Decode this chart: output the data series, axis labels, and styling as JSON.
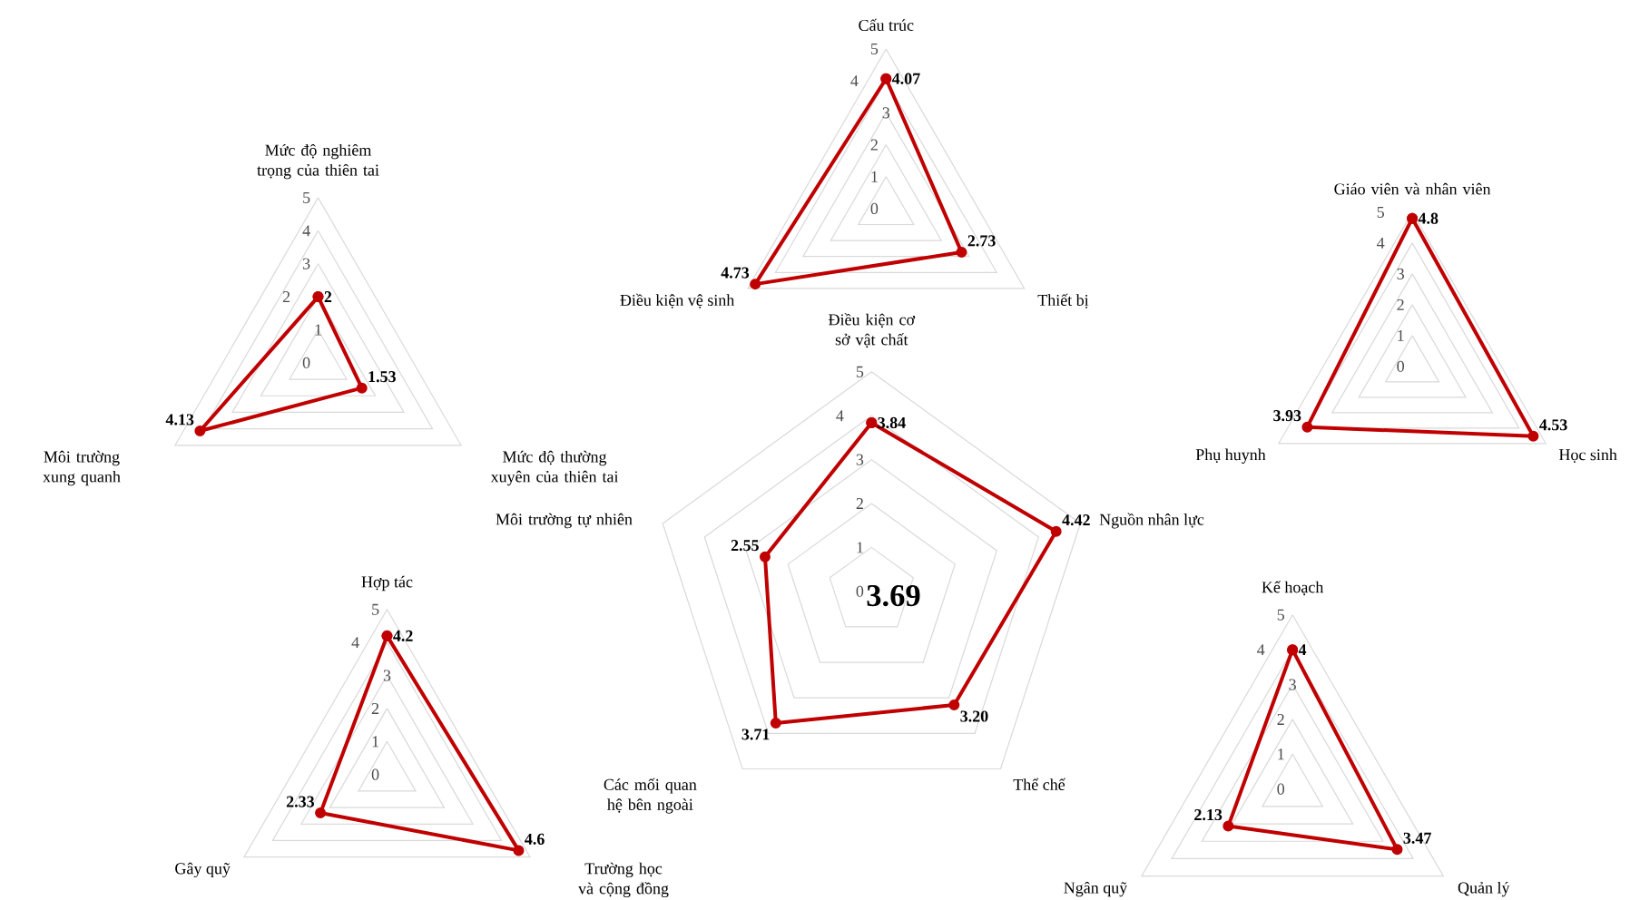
{
  "chart_data": [
    {
      "type": "radar",
      "categories": [
        "Cấu trúc",
        "Thiết bị",
        "Điều kiện vệ sinh"
      ],
      "values": [
        4.07,
        2.73,
        4.73
      ],
      "value_labels": [
        "4.07",
        "2.73",
        "4.73"
      ],
      "color": "#c00000",
      "ylim": [
        0,
        5
      ],
      "yticks": [
        0,
        1,
        2,
        3,
        4,
        5
      ],
      "grid": true,
      "marker": "circle"
    },
    {
      "type": "radar",
      "categories": [
        "Mức độ nghiêm trọng của thiên tai",
        "Mức độ thường xuyên của thiên tai",
        "Môi trường xung quanh"
      ],
      "values": [
        2,
        1.53,
        4.13
      ],
      "value_labels": [
        "2",
        "1.53",
        "4.13"
      ],
      "color": "#c00000",
      "ylim": [
        0,
        5
      ],
      "yticks": [
        0,
        1,
        2,
        3,
        4,
        5
      ],
      "grid": true,
      "marker": "circle"
    },
    {
      "type": "radar",
      "categories": [
        "Giáo viên và nhân viên",
        "Học sinh",
        "Phụ huynh"
      ],
      "values": [
        4.8,
        4.53,
        3.93
      ],
      "value_labels": [
        "4.8",
        "4.53",
        "3.93"
      ],
      "color": "#c00000",
      "ylim": [
        0,
        5
      ],
      "yticks": [
        0,
        1,
        2,
        3,
        4,
        5
      ],
      "grid": true,
      "marker": "circle"
    },
    {
      "type": "radar",
      "categories": [
        "Điều kiện cơ sở vật chất",
        "Nguồn nhân lực",
        "Thể chế",
        "Các mối quan hệ bên ngoài",
        "Môi trường tự nhiên"
      ],
      "values": [
        3.84,
        4.42,
        3.2,
        3.71,
        2.55
      ],
      "value_labels": [
        "3.84",
        "4.42",
        "3.20",
        "3.71",
        "2.55"
      ],
      "color": "#c00000",
      "ylim": [
        0,
        5
      ],
      "yticks": [
        0,
        1,
        2,
        3,
        4,
        5
      ],
      "grid": true,
      "marker": "circle",
      "annotations": [
        "3.69"
      ]
    },
    {
      "type": "radar",
      "categories": [
        "Hợp tác",
        "Trường học và cộng đồng",
        "Gây quỹ"
      ],
      "values": [
        4.2,
        4.6,
        2.33
      ],
      "value_labels": [
        "4.2",
        "4.6",
        "2.33"
      ],
      "color": "#c00000",
      "ylim": [
        0,
        5
      ],
      "yticks": [
        0,
        1,
        2,
        3,
        4,
        5
      ],
      "grid": true,
      "marker": "circle"
    },
    {
      "type": "radar",
      "categories": [
        "Kế hoạch",
        "Quản lý",
        "Ngân quỹ"
      ],
      "values": [
        4,
        3.47,
        2.13
      ],
      "value_labels": [
        "4",
        "3.47",
        "2.13"
      ],
      "color": "#c00000",
      "ylim": [
        0,
        5
      ],
      "yticks": [
        0,
        1,
        2,
        3,
        4,
        5
      ],
      "grid": true,
      "marker": "circle"
    }
  ]
}
